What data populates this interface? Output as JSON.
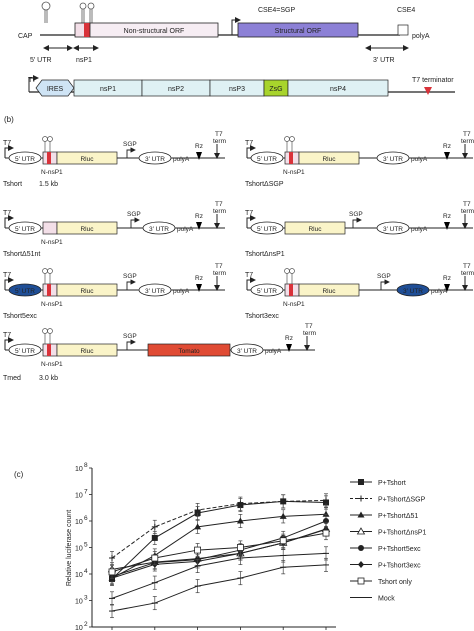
{
  "panel_a": {
    "top": {
      "cap": "CAP",
      "cse4_sgp": "CSE4=SGP",
      "cse4": "CSE4",
      "nonstructural_orf": "Non-structural ORF",
      "structural_orf": "Structural ORF",
      "polya": "polyA",
      "utr5": "5′ UTR",
      "nsp1": "nsP1",
      "utr3": "3′ UTR"
    },
    "replicon": {
      "t7": "T7",
      "ires": "IRES",
      "nsp1": "nsP1",
      "nsp2": "nsP2",
      "nsp3": "nsP3",
      "zsg": "ZsG",
      "nsp4": "nsP4",
      "t7_terminator": "T7 terminator"
    }
  },
  "panel_b": {
    "label": "(b)",
    "t7": "T7",
    "utr5": "5′ UTR",
    "utr3": "3′ UTR",
    "n_nsp1": "N-nsP1",
    "rluc": "Rluc",
    "tomato": "Tomato",
    "sgp": "SGP",
    "polya": "polyA",
    "rz": "Rz",
    "t7_term_1": "T7",
    "t7_term_2": "term",
    "constructs": {
      "tshort": "Tshort",
      "tshort_size": "1.5 kb",
      "tshort_dsgp": "TshortΔSGP",
      "tshort_d51nt": "TshortΔ51nt",
      "tshort_dnsp1": "TshortΔnsP1",
      "tshort5exc": "Tshort5exc",
      "tshort3exc": "Tshort3exc",
      "tmed": "Tmed",
      "tmed_size": "3.0 kb"
    }
  },
  "panel_c": {
    "label": "(c)",
    "ylabel": "Relative luciferase count",
    "yticks": [
      "10",
      "10",
      "10",
      "10",
      "10",
      "10",
      "10"
    ],
    "yexp": [
      "2",
      "3",
      "4",
      "5",
      "6",
      "7",
      "8"
    ],
    "legend": [
      "P+Tshort",
      "P+TshortΔSGP",
      "P+TshortΔ51",
      "P+TshortΔnsP1",
      "P+Tshort5exc",
      "P+Tshort3exc",
      "Tshort only",
      "Mock"
    ]
  },
  "chart_data": {
    "type": "line",
    "ylabel": "Relative luciferase count",
    "yscale": "log",
    "ylim": [
      100,
      100000000
    ],
    "x": [
      1,
      2,
      3,
      4,
      5,
      6
    ],
    "series": [
      {
        "name": "P+Tshort",
        "marker": "filled-square",
        "values": [
          6500,
          230000,
          2000000,
          4000000,
          5500000,
          5000000
        ]
      },
      {
        "name": "P+TshortΔSGP",
        "marker": "plus-dashed",
        "values": [
          40000,
          600000,
          2600000,
          4500000,
          5500000,
          6000000
        ]
      },
      {
        "name": "P+TshortΔ51",
        "marker": "filled-triangle",
        "values": [
          7000,
          50000,
          600000,
          1000000,
          1500000,
          1800000
        ]
      },
      {
        "name": "P+TshortΔnsP1",
        "marker": "open-triangle",
        "values": [
          15000,
          28000,
          38000,
          60000,
          150000,
          500000
        ]
      },
      {
        "name": "P+Tshort5exc",
        "marker": "filled-circle",
        "values": [
          8000,
          27000,
          35000,
          80000,
          230000,
          1000000
        ]
      },
      {
        "name": "P+Tshort3exc",
        "marker": "filled-diamond",
        "values": [
          7000,
          23000,
          30000,
          60000,
          150000,
          480000
        ]
      },
      {
        "name": "Tshort only",
        "marker": "open-square",
        "values": [
          12000,
          40000,
          80000,
          100000,
          180000,
          350000
        ]
      },
      {
        "name": "Mock",
        "marker": "line",
        "values": [
          1200,
          4700,
          20000,
          40000,
          50000,
          60000
        ]
      },
      {
        "name": "",
        "marker": "line",
        "values": [
          400,
          800,
          3500,
          7000,
          18000,
          22000
        ]
      }
    ]
  }
}
